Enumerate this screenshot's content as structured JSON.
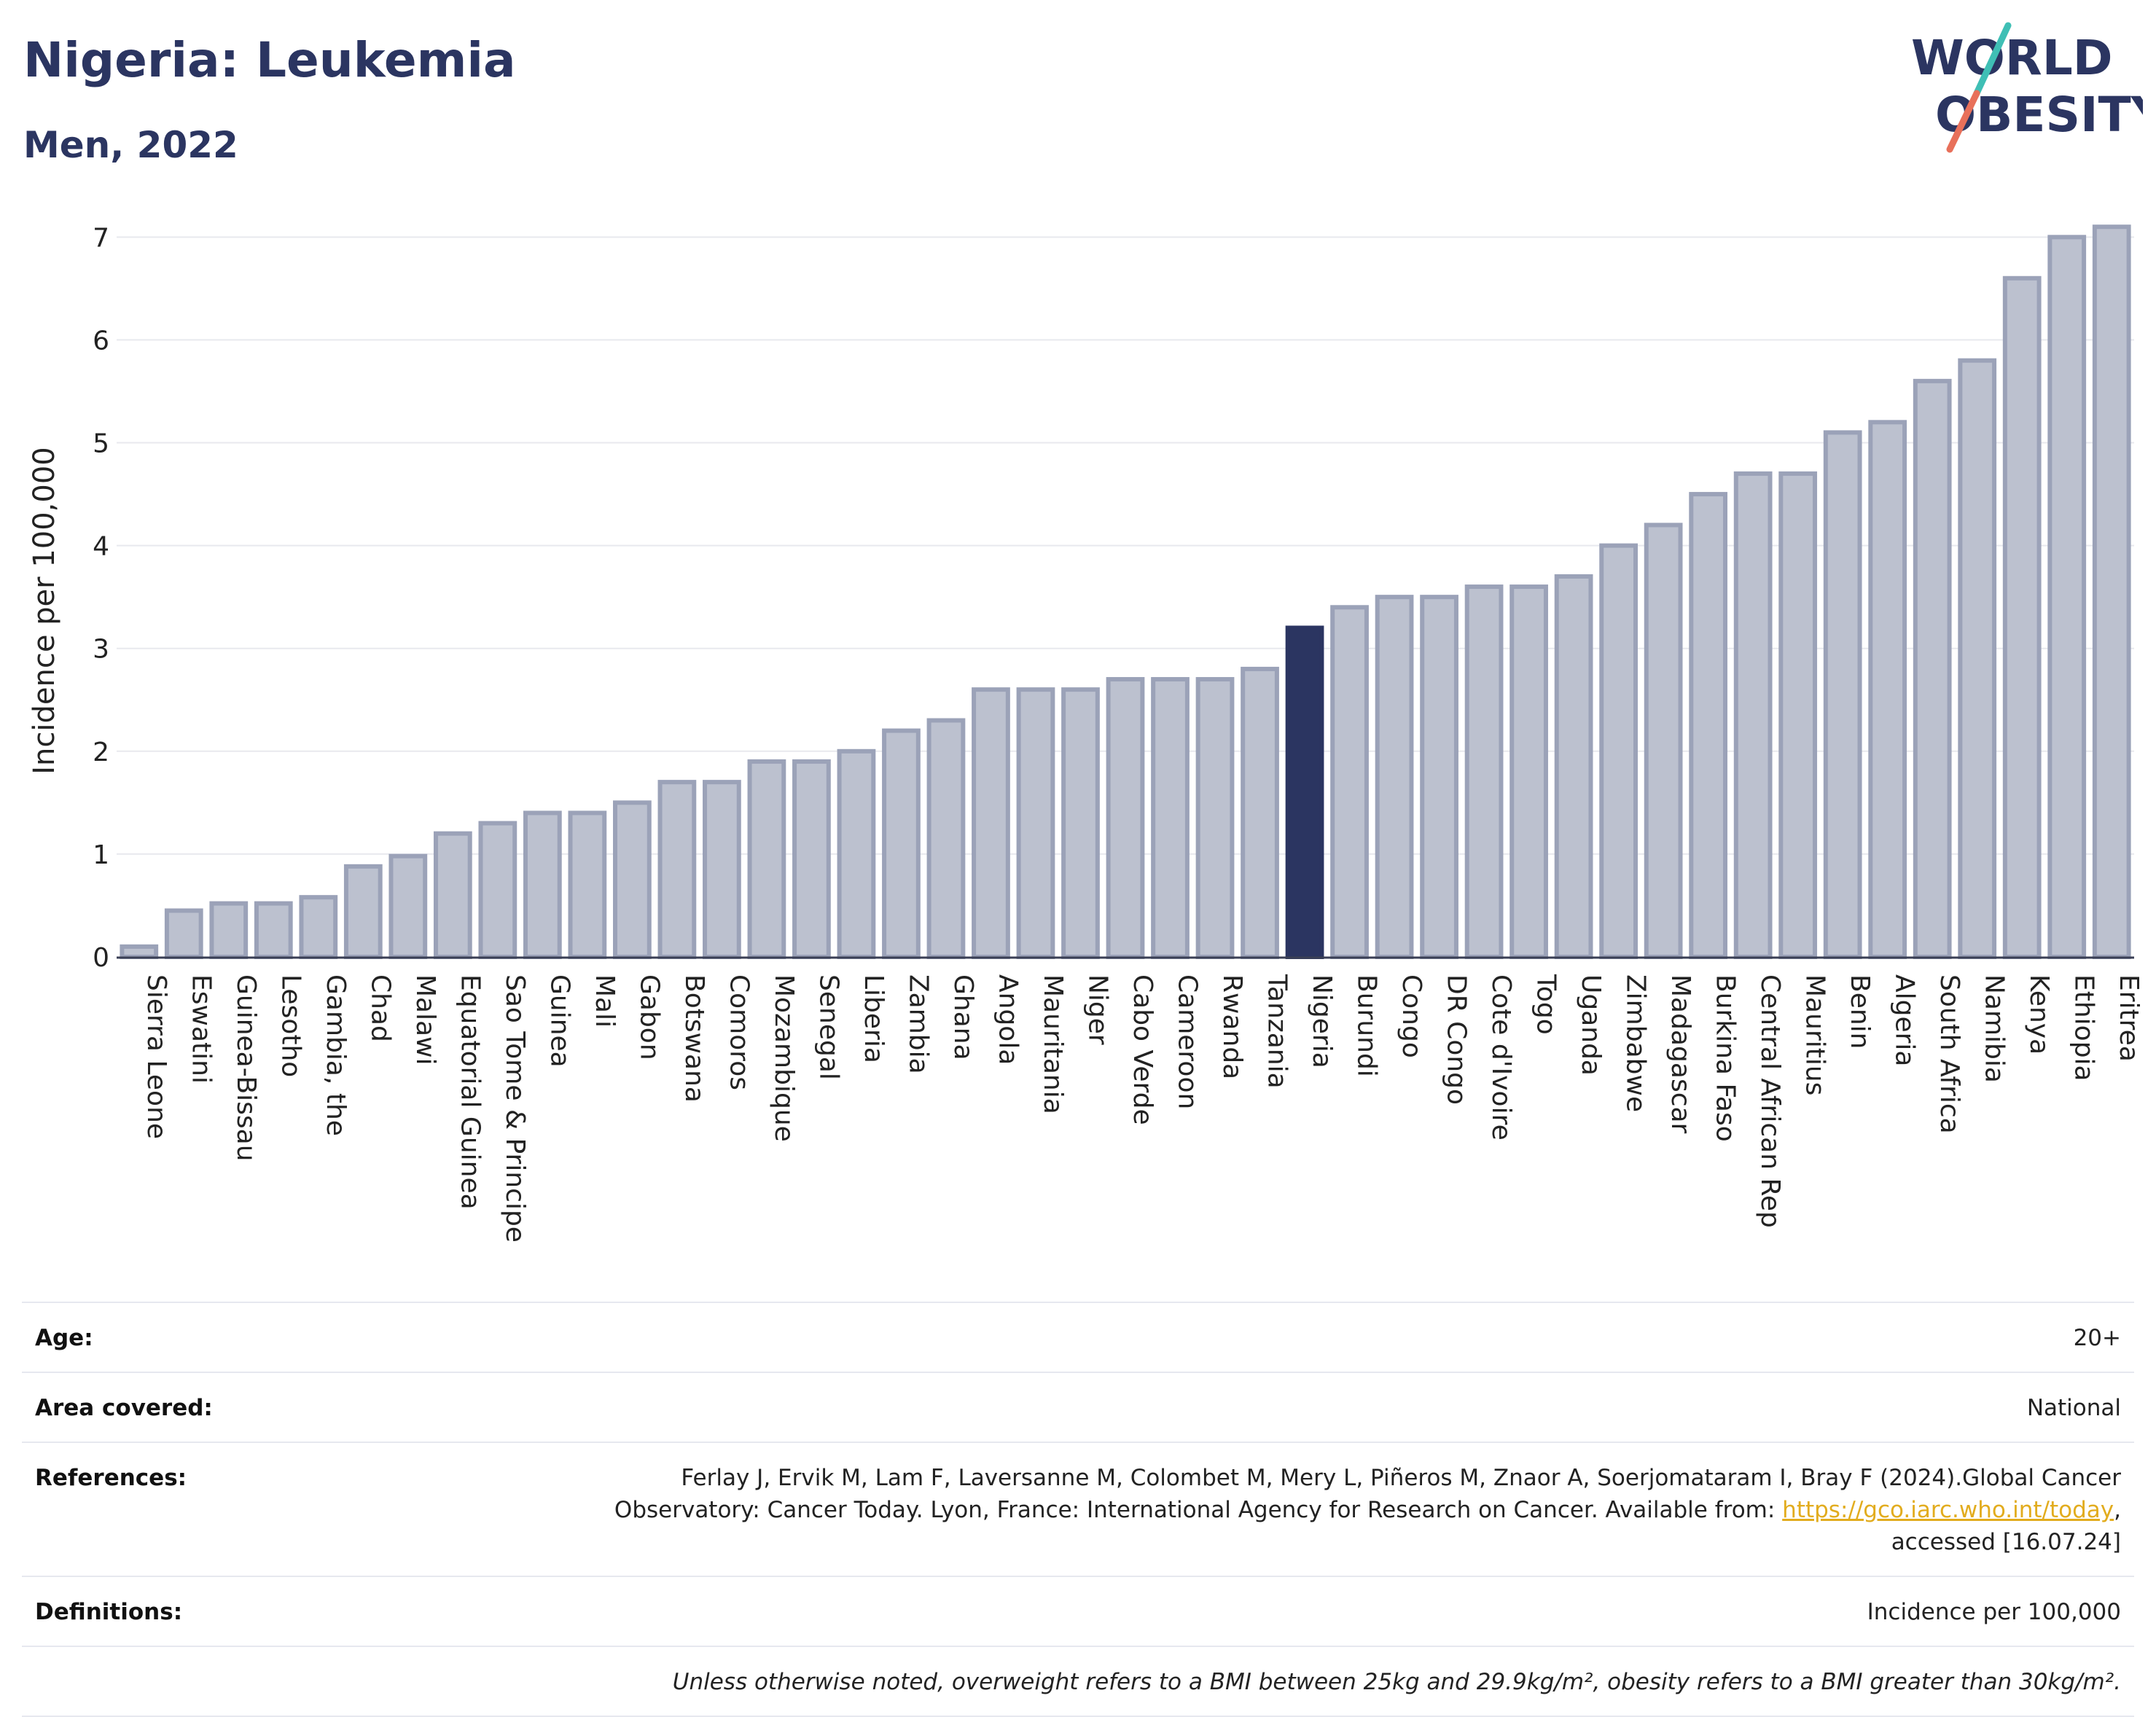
{
  "header": {
    "title": "Nigeria: Leukemia",
    "subtitle": "Men, 2022"
  },
  "logo": {
    "line1": "WORLD",
    "line2": "OBESITY",
    "colors": {
      "text": "#2b3561",
      "slash_teal": "#3fbfb5",
      "slash_coral": "#e8705a"
    }
  },
  "chart_data": {
    "type": "bar",
    "ylabel": "Incidence per 100,000",
    "xlabel": "",
    "ylim": [
      0,
      7.3
    ],
    "yticks": [
      0,
      1,
      2,
      3,
      4,
      5,
      6,
      7
    ],
    "grid": true,
    "highlight": "Nigeria",
    "colors": {
      "bar": "#bcc1cf",
      "bar_edge": "#9ba2b8",
      "highlight": "#2b3561"
    },
    "categories": [
      "Sierra Leone",
      "Eswatini",
      "Guinea-Bissau",
      "Lesotho",
      "Gambia, the",
      "Chad",
      "Malawi",
      "Equatorial Guinea",
      "Sao Tome & Principe",
      "Guinea",
      "Mali",
      "Gabon",
      "Botswana",
      "Comoros",
      "Mozambique",
      "Senegal",
      "Liberia",
      "Zambia",
      "Ghana",
      "Angola",
      "Mauritania",
      "Niger",
      "Cabo Verde",
      "Cameroon",
      "Rwanda",
      "Tanzania",
      "Nigeria",
      "Burundi",
      "Congo",
      "DR Congo",
      "Cote d'Ivoire",
      "Togo",
      "Uganda",
      "Zimbabwe",
      "Madagascar",
      "Burkina Faso",
      "Central African Rep",
      "Mauritius",
      "Benin",
      "Algeria",
      "South Africa",
      "Namibia",
      "Kenya",
      "Ethiopia",
      "Eritrea"
    ],
    "values": [
      0.1,
      0.45,
      0.52,
      0.52,
      0.58,
      0.88,
      0.98,
      1.2,
      1.3,
      1.4,
      1.4,
      1.5,
      1.7,
      1.7,
      1.9,
      1.9,
      2.0,
      2.2,
      2.3,
      2.6,
      2.6,
      2.6,
      2.7,
      2.7,
      2.7,
      2.8,
      3.2,
      3.4,
      3.5,
      3.5,
      3.6,
      3.6,
      3.7,
      4.0,
      4.2,
      4.5,
      4.7,
      4.7,
      5.1,
      5.2,
      5.6,
      5.8,
      6.6,
      7.0,
      7.1
    ]
  },
  "info": {
    "age": {
      "label": "Age:",
      "value": "20+"
    },
    "area": {
      "label": "Area covered:",
      "value": "National"
    },
    "references": {
      "label": "References:",
      "text1": "Ferlay J, Ervik M, Lam F, Laversanne M, Colombet M, Mery L, Piñeros M, Znaor A, Soerjomataram I, Bray F (2024).Global Cancer",
      "text2": "Observatory: Cancer Today. Lyon, France: International Agency for Research on Cancer. Available from: ",
      "link": "https://gco.iarc.who.int/today",
      "text3": ",",
      "text4": "accessed [16.07.24]"
    },
    "definitions": {
      "label": "Definitions:",
      "value": "Incidence per 100,000"
    },
    "note": "Unless otherwise noted, overweight refers to a BMI between 25kg and 29.9kg/m², obesity refers to a BMI greater than 30kg/m²."
  }
}
